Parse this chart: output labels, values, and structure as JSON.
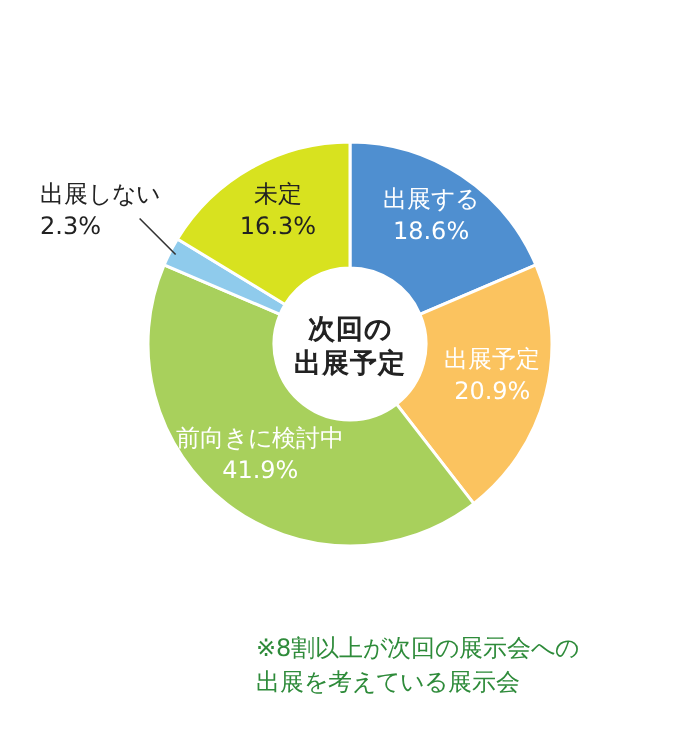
{
  "chart_data": {
    "type": "donut",
    "title": "次回の出展予定",
    "categories": [
      "出展する",
      "出展予定",
      "前向きに検討中",
      "出展しない",
      "未定"
    ],
    "values": [
      18.6,
      20.9,
      41.9,
      2.3,
      16.3
    ],
    "value_labels": [
      "18.6%",
      "20.9%",
      "41.9%",
      "2.3%",
      "16.3%"
    ],
    "colors": [
      "#4f8fd0",
      "#fbc35f",
      "#a8d05c",
      "#8fcbec",
      "#d8e21f"
    ],
    "annotations": [
      "※8割以上が次回の展示会への出展を考えている展示会"
    ]
  }
}
